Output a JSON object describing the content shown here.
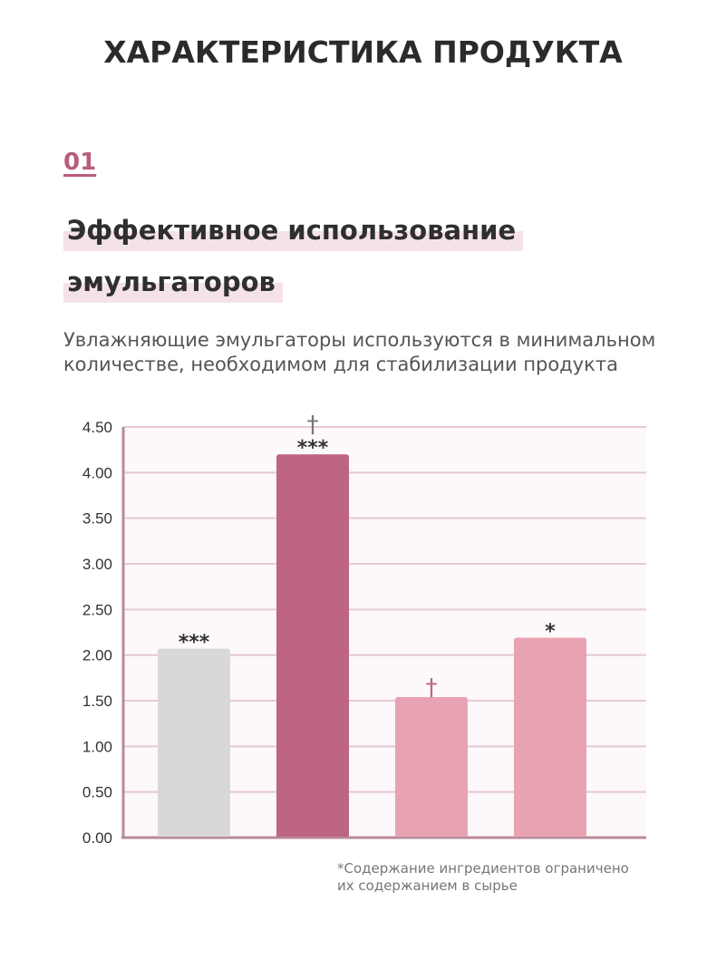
{
  "page": {
    "title": "ХАРАКТЕРИСТИКА ПРОДУКТА",
    "section_number": "01",
    "heading_line_1": "Эффективное использование",
    "heading_line_2": "эмульгаторов",
    "description": "Увлажняющие эмульгаторы используются в минимальном количестве, необходимом для стабилизации продукта",
    "footnote_line_1": "*Содержание ингредиентов ограничено",
    "footnote_line_2": "их содержанием в сырье"
  },
  "colors": {
    "accent": "#b85d7e",
    "highlight": "#f5e2e8",
    "plot_bg": "#fdf8f9",
    "grid": "#e6c9d3",
    "axis": "#b88a9c",
    "bar_gray": "#d8d8d8",
    "bar_dark_pink": "#bd6582",
    "bar_light_pink": "#e8a3b3",
    "dagger_gray": "#777777",
    "dagger_pink": "#bd6582"
  },
  "chart_data": {
    "type": "bar",
    "ylim": [
      0,
      4.5
    ],
    "y_ticks": [
      "0.00",
      "0.50",
      "1.00",
      "1.50",
      "2.00",
      "2.50",
      "3.00",
      "3.50",
      "4.00",
      "4.50"
    ],
    "grid": true,
    "bars": [
      {
        "value": 2.07,
        "color": "#d8d8d8",
        "stars": "***",
        "dagger": ""
      },
      {
        "value": 4.2,
        "color": "#bd6582",
        "stars": "***",
        "dagger": "†"
      },
      {
        "value": 1.54,
        "color": "#e8a3b3",
        "stars": "",
        "dagger": "†"
      },
      {
        "value": 2.19,
        "color": "#e8a3b3",
        "stars": "*",
        "dagger": ""
      }
    ]
  }
}
